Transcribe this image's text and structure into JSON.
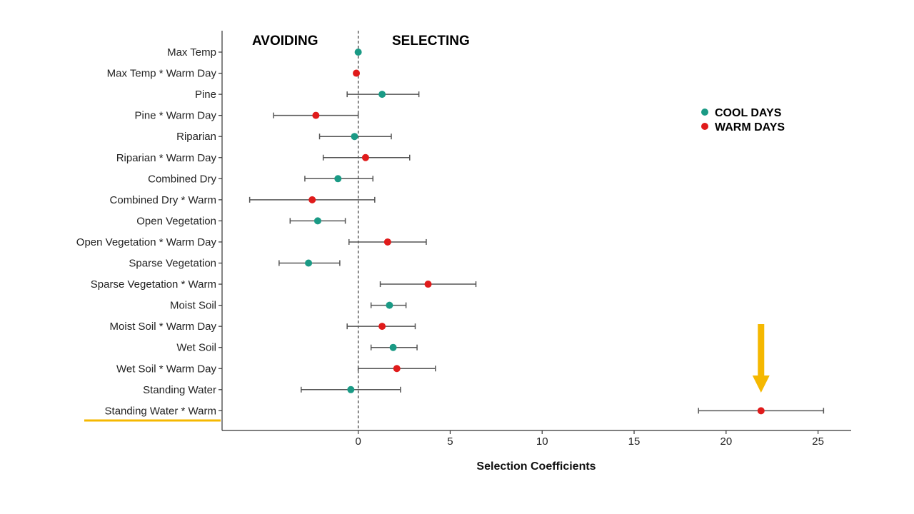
{
  "chart_data": {
    "type": "scatter",
    "xlabel": "Selection Coefficients",
    "ylabel": "",
    "xlim": [
      -7.4,
      26.8
    ],
    "x_ticks": [
      0,
      5,
      10,
      15,
      20,
      25
    ],
    "reference_line_x": 0,
    "region_labels": {
      "left": "AVOIDING",
      "right": "SELECTING"
    },
    "legend": {
      "position": "top-right",
      "entries": [
        {
          "label": "COOL DAYS",
          "color": "#1a9a85"
        },
        {
          "label": "WARM DAYS",
          "color": "#e01b1b"
        }
      ]
    },
    "colors": {
      "cool": "#1a9a85",
      "warm": "#e01b1b",
      "highlight": "#f5b800",
      "errorbar": "#555555"
    },
    "points": [
      {
        "label": "Max Temp",
        "group": "cool",
        "x": 0.0
      },
      {
        "label": "Max Temp * Warm Day",
        "group": "warm",
        "x": -0.1
      },
      {
        "label": "Pine",
        "group": "cool",
        "x": 1.3,
        "lower": -0.6,
        "upper": 3.3
      },
      {
        "label": "Pine * Warm Day",
        "group": "warm",
        "x": -2.3,
        "lower": -4.6,
        "upper": 0.0
      },
      {
        "label": "Riparian",
        "group": "cool",
        "x": -0.2,
        "lower": -2.1,
        "upper": 1.8
      },
      {
        "label": "Riparian * Warm Day",
        "group": "warm",
        "x": 0.4,
        "lower": -1.9,
        "upper": 2.8
      },
      {
        "label": "Combined Dry",
        "group": "cool",
        "x": -1.1,
        "lower": -2.9,
        "upper": 0.8
      },
      {
        "label": "Combined Dry * Warm",
        "group": "warm",
        "x": -2.5,
        "lower": -5.9,
        "upper": 0.9
      },
      {
        "label": "Open Vegetation",
        "group": "cool",
        "x": -2.2,
        "lower": -3.7,
        "upper": -0.7
      },
      {
        "label": "Open Vegetation * Warm Day",
        "group": "warm",
        "x": 1.6,
        "lower": -0.5,
        "upper": 3.7
      },
      {
        "label": "Sparse Vegetation",
        "group": "cool",
        "x": -2.7,
        "lower": -4.3,
        "upper": -1.0
      },
      {
        "label": "Sparse Vegetation * Warm",
        "group": "warm",
        "x": 3.8,
        "lower": 1.2,
        "upper": 6.4
      },
      {
        "label": "Moist Soil",
        "group": "cool",
        "x": 1.7,
        "lower": 0.7,
        "upper": 2.6
      },
      {
        "label": "Moist Soil * Warm Day",
        "group": "warm",
        "x": 1.3,
        "lower": -0.6,
        "upper": 3.1
      },
      {
        "label": "Wet Soil",
        "group": "cool",
        "x": 1.9,
        "lower": 0.7,
        "upper": 3.2
      },
      {
        "label": "Wet Soil * Warm Day",
        "group": "warm",
        "x": 2.1,
        "lower": 0.0,
        "upper": 4.2
      },
      {
        "label": "Standing Water",
        "group": "cool",
        "x": -0.4,
        "lower": -3.1,
        "upper": 2.3
      },
      {
        "label": "Standing Water * Warm",
        "group": "warm",
        "x": 21.9,
        "lower": 18.5,
        "upper": 25.3
      }
    ],
    "highlight": {
      "label": "Standing Water * Warm",
      "arrow_x": 21.9
    }
  }
}
